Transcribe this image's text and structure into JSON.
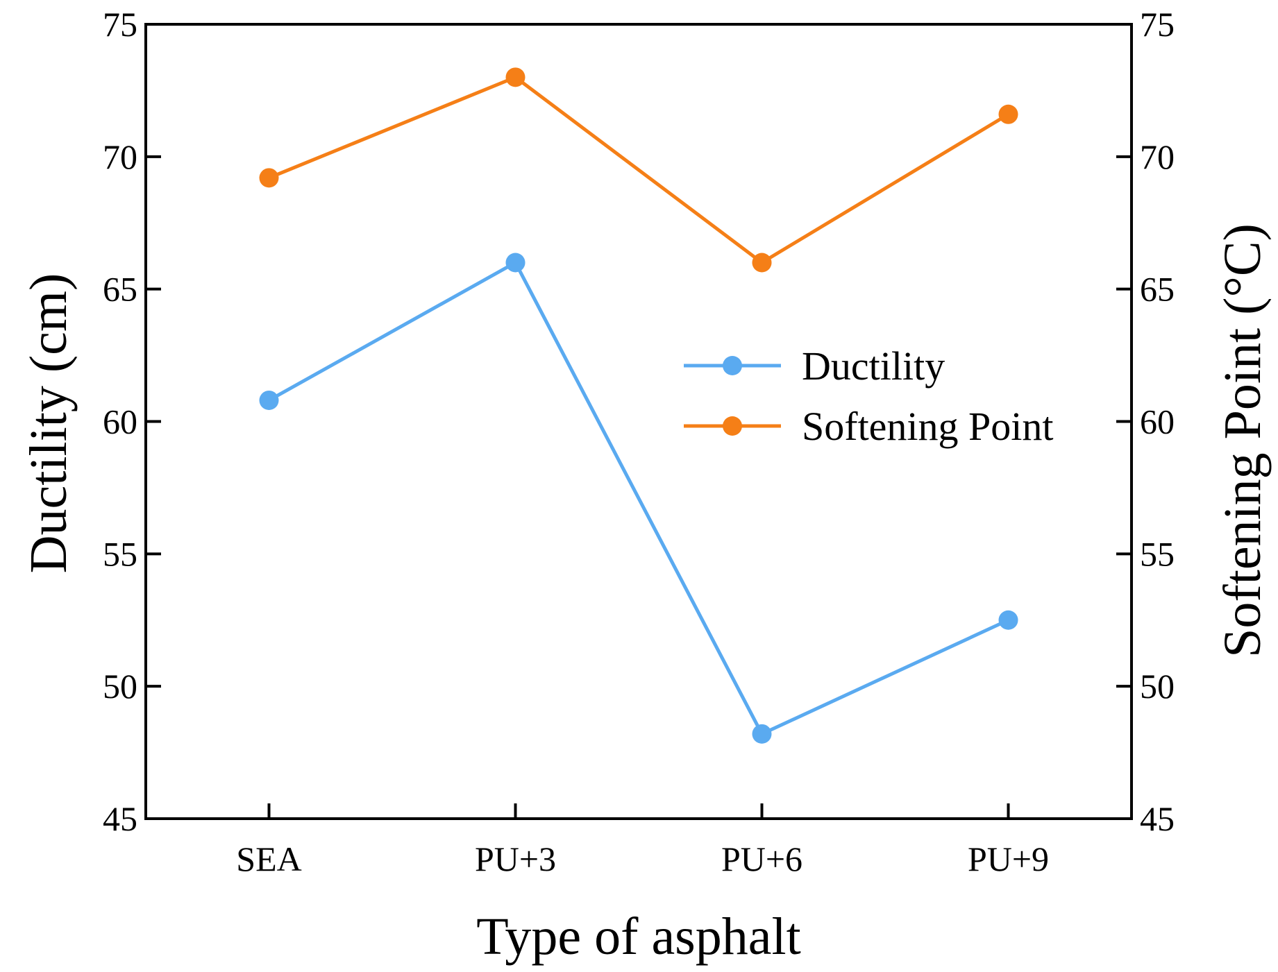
{
  "chart_data": {
    "type": "line",
    "categories": [
      "SEA",
      "PU+3",
      "PU+6",
      "PU+9"
    ],
    "xlabel": "Type of asphalt",
    "ylabel": "Ductility (cm)",
    "y2label": "Softening Point (°C)",
    "ylim": [
      45,
      75
    ],
    "y2lim": [
      45,
      75
    ],
    "yticks": [
      45,
      50,
      55,
      60,
      65,
      70,
      75
    ],
    "y2ticks": [
      45,
      50,
      55,
      60,
      65,
      70,
      75
    ],
    "grid": false,
    "legend_position": "center-right",
    "series": [
      {
        "name": "Ductility",
        "axis": "left",
        "color": "#5aaaf0",
        "values": [
          60.8,
          66.0,
          48.2,
          52.5
        ]
      },
      {
        "name": "Softening Point",
        "axis": "right",
        "color": "#f57f17",
        "values": [
          69.2,
          73.0,
          66.0,
          71.6
        ]
      }
    ]
  }
}
